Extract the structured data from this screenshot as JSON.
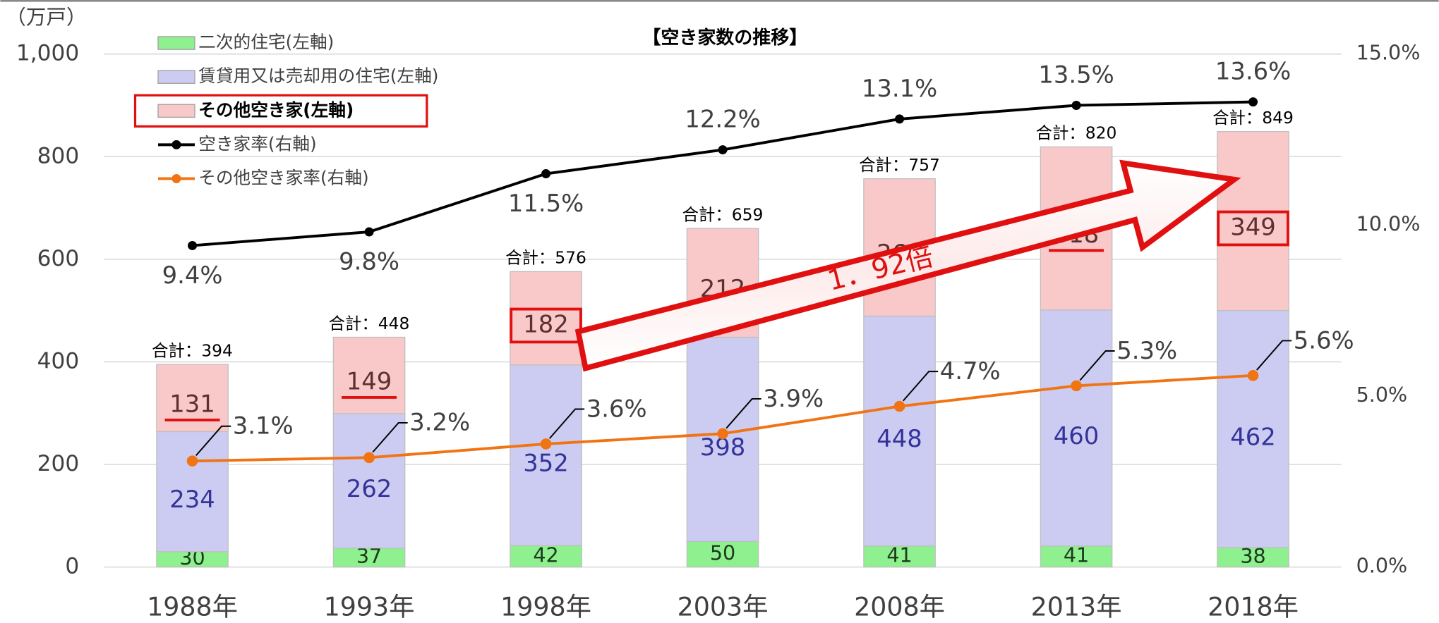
{
  "chart_data": {
    "type": "bar",
    "stacked": true,
    "title": "【空き家数の推移】",
    "y_label": "（万戸）",
    "categories": [
      "1988年",
      "1993年",
      "1998年",
      "2003年",
      "2008年",
      "2013年",
      "2018年"
    ],
    "series": [
      {
        "name": "二次的住宅(左軸)",
        "color": "#8ff08f",
        "label_color": "#1d3b1d",
        "values": [
          30,
          37,
          42,
          50,
          41,
          41,
          38
        ]
      },
      {
        "name": "賃貸用又は売却用の住宅(左軸)",
        "color": "#ccccf2",
        "label_color": "#33339a",
        "values": [
          234,
          262,
          352,
          398,
          448,
          460,
          462
        ]
      },
      {
        "name": "その他空き家(左軸)",
        "color": "#f9c8c8",
        "label_color": "#5a3030",
        "values": [
          131,
          149,
          182,
          212,
          268,
          318,
          349
        ]
      },
      {
        "name": "空き家率(右軸)",
        "type": "line",
        "axis": "y2",
        "color": "#000000",
        "values": [
          9.4,
          9.8,
          11.5,
          12.2,
          13.1,
          13.5,
          13.6
        ],
        "value_labels": [
          "9.4%",
          "9.8%",
          "11.5%",
          "12.2%",
          "13.1%",
          "13.5%",
          "13.6%"
        ]
      },
      {
        "name": "その他空き家率(右軸)",
        "type": "line",
        "axis": "y2",
        "color": "#f07414",
        "values": [
          3.1,
          3.2,
          3.6,
          3.9,
          4.7,
          5.3,
          5.6
        ],
        "value_labels": [
          "3.1%",
          "3.2%",
          "3.6%",
          "3.9%",
          "4.7%",
          "5.3%",
          "5.6%"
        ]
      }
    ],
    "totals": {
      "values": [
        394,
        448,
        576,
        659,
        757,
        820,
        849
      ],
      "value_labels": [
        "合計：394",
        "合計：448",
        "合計：576",
        "合計：659",
        "合計：757",
        "合計：820",
        "合計：849"
      ]
    },
    "annotation": "1．92倍",
    "ylim": [
      0,
      1000
    ],
    "yticks": [
      0,
      200,
      400,
      600,
      800,
      {
        "value": 1000,
        "label": "1,000"
      }
    ],
    "y2lim": [
      0,
      15
    ],
    "y2ticks": [
      {
        "value": 0,
        "label": "0.0%"
      },
      {
        "value": 5,
        "label": "5.0%"
      },
      {
        "value": 10,
        "label": "10.0%"
      },
      {
        "value": 15,
        "label": "15.0%"
      }
    ],
    "grid": true,
    "legend": "upper left"
  }
}
